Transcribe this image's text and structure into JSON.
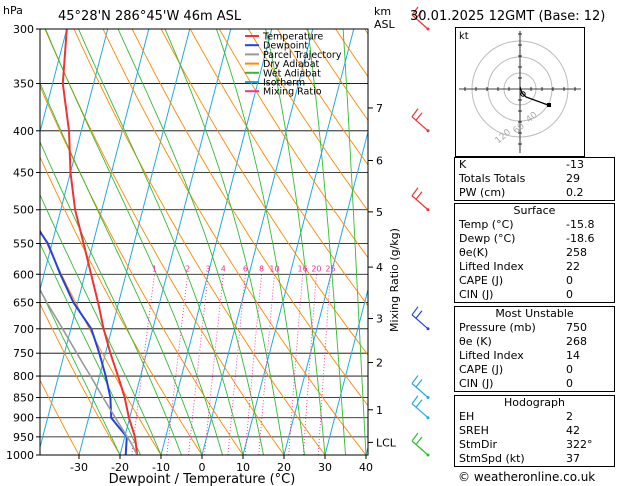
{
  "header": {
    "pressure_unit": "hPa",
    "location": "45°28'N  286°45'W  46m  ASL",
    "height_unit": "km",
    "height_unit2": "ASL",
    "datetime": "30.01.2025  12GMT  (Base: 12)"
  },
  "chart_data": {
    "type": "line",
    "xlabel": "Dewpoint / Temperature (°C)",
    "ylabel_right": "Mixing Ratio (g/kg)",
    "x_ticks": [
      -30,
      -20,
      -10,
      0,
      10,
      20,
      30,
      40
    ],
    "x_tick_labels": [
      "-30",
      "-20",
      "-10",
      "0",
      "10",
      "20",
      "30",
      "40"
    ],
    "xlim": [
      -35,
      40
    ],
    "pressure_levels": [
      300,
      350,
      400,
      450,
      500,
      550,
      600,
      650,
      700,
      750,
      800,
      850,
      900,
      950,
      1000
    ],
    "pressure_labels": [
      "300",
      "350",
      "400",
      "450",
      "500",
      "550",
      "600",
      "650",
      "700",
      "750",
      "800",
      "850",
      "900",
      "950",
      "1000"
    ],
    "ylim": [
      1000,
      300
    ],
    "km_ticks": [
      {
        "km": "7",
        "p": 375
      },
      {
        "km": "6",
        "p": 435
      },
      {
        "km": "5",
        "p": 503
      },
      {
        "km": "4",
        "p": 588
      },
      {
        "km": "3",
        "p": 680
      },
      {
        "km": "2",
        "p": 770
      },
      {
        "km": "1",
        "p": 880
      },
      {
        "km": "LCL",
        "p": 965
      }
    ],
    "mixing_ratio_labels": [
      "1",
      "2",
      "3",
      "4",
      "6",
      "8",
      "10",
      "16",
      "20",
      "25"
    ],
    "mixing_ratios": [
      1,
      2,
      3,
      4,
      6,
      8,
      10,
      16,
      20,
      25
    ],
    "legend": {
      "placement": "top-left",
      "entries": [
        {
          "name": "Temperature",
          "color": "#ee3333"
        },
        {
          "name": "Dewpoint",
          "color": "#2244dd"
        },
        {
          "name": "Parcel Trajectory",
          "color": "#999999"
        },
        {
          "name": "Dry Adiabat",
          "color": "#ff8800"
        },
        {
          "name": "Wet Adiabat",
          "color": "#33bb33"
        },
        {
          "name": "Isotherm",
          "color": "#22aadd"
        },
        {
          "name": "Mixing Ratio",
          "color": "#ee3399"
        }
      ]
    },
    "series": [
      {
        "name": "Temperature",
        "color": "#ee3333",
        "points": [
          [
            1000,
            -15.8
          ],
          [
            950,
            -17.5
          ],
          [
            900,
            -20.2
          ],
          [
            850,
            -22.5
          ],
          [
            800,
            -25.5
          ],
          [
            750,
            -28.8
          ],
          [
            700,
            -32.0
          ],
          [
            650,
            -35.0
          ],
          [
            600,
            -38.5
          ],
          [
            550,
            -42.3
          ],
          [
            500,
            -46.5
          ],
          [
            450,
            -50.0
          ],
          [
            400,
            -53.0
          ],
          [
            350,
            -57.5
          ],
          [
            300,
            -60.0
          ]
        ]
      },
      {
        "name": "Dewpoint",
        "color": "#2244dd",
        "points": [
          [
            1000,
            -18.6
          ],
          [
            950,
            -19.5
          ],
          [
            920,
            -22.5
          ],
          [
            900,
            -24.5
          ],
          [
            850,
            -26.0
          ],
          [
            800,
            -28.5
          ],
          [
            750,
            -31.5
          ],
          [
            700,
            -35.0
          ],
          [
            650,
            -41.0
          ],
          [
            600,
            -46.0
          ],
          [
            550,
            -51.0
          ],
          [
            520,
            -55.5
          ],
          [
            500,
            -60.5
          ],
          [
            450,
            -64.0
          ],
          [
            400,
            -67.5
          ],
          [
            350,
            -70.0
          ],
          [
            300,
            -74.0
          ]
        ]
      },
      {
        "name": "Parcel Trajectory",
        "color": "#999999",
        "points": [
          [
            1000,
            -15.8
          ],
          [
            965,
            -18.2
          ],
          [
            900,
            -23.5
          ],
          [
            850,
            -27.8
          ],
          [
            800,
            -32.2
          ],
          [
            750,
            -37.0
          ],
          [
            700,
            -42.0
          ],
          [
            650,
            -47.5
          ],
          [
            600,
            -53.0
          ],
          [
            550,
            -59.0
          ],
          [
            500,
            -65.0
          ],
          [
            450,
            -71.0
          ],
          [
            400,
            -77.0
          ],
          [
            350,
            -83.0
          ],
          [
            300,
            -89.0
          ]
        ]
      }
    ]
  },
  "hodograph": {
    "label": "kt",
    "ring_labels": [
      "40",
      "60",
      "120"
    ]
  },
  "indices": {
    "rows": [
      {
        "label": "K",
        "value": "-13"
      },
      {
        "label": "Totals Totals",
        "value": "29"
      },
      {
        "label": "PW (cm)",
        "value": "0.2"
      }
    ]
  },
  "surface": {
    "title": "Surface",
    "rows": [
      {
        "label": "Temp (°C)",
        "value": "-15.8"
      },
      {
        "label": "Dewp (°C)",
        "value": "-18.6"
      },
      {
        "label": "θe(K)",
        "value": "258"
      },
      {
        "label": "Lifted Index",
        "value": "22"
      },
      {
        "label": "CAPE (J)",
        "value": "0"
      },
      {
        "label": "CIN (J)",
        "value": "0"
      }
    ]
  },
  "most_unstable": {
    "title": "Most Unstable",
    "rows": [
      {
        "label": "Pressure (mb)",
        "value": "750"
      },
      {
        "label": "θe (K)",
        "value": "268"
      },
      {
        "label": "Lifted Index",
        "value": "14"
      },
      {
        "label": "CAPE (J)",
        "value": "0"
      },
      {
        "label": "CIN (J)",
        "value": "0"
      }
    ]
  },
  "hodo_table": {
    "title": "Hodograph",
    "rows": [
      {
        "label": "EH",
        "value": "2"
      },
      {
        "label": "SREH",
        "value": "42"
      },
      {
        "label": "StmDir",
        "value": "322°"
      },
      {
        "label": "StmSpd (kt)",
        "value": "37"
      }
    ]
  },
  "footer": {
    "copyright": "© weatheronline.co.uk"
  },
  "colors": {
    "isotherm": "#22aadd",
    "dry_adiabat": "#ff8800",
    "wet_adiabat": "#33bb33",
    "mixing_ratio": "#ee3399",
    "wind_barb_high": "#ee3333",
    "wind_barb_mid": "#2244dd",
    "wind_barb_low": "#22aadd",
    "wind_barb_sfc": "#33bb33"
  }
}
